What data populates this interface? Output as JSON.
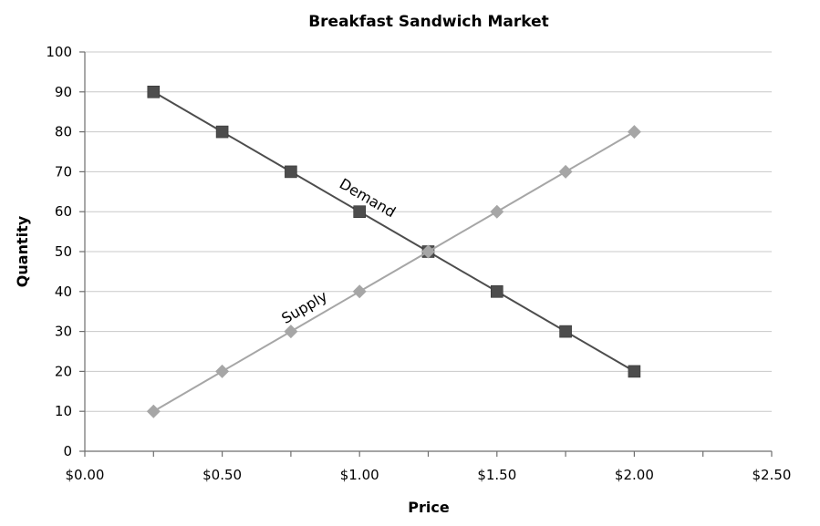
{
  "chart_data": {
    "type": "line",
    "title": "Breakfast Sandwich Market",
    "xlabel": "Price",
    "ylabel": "Quantity",
    "xlim": [
      0,
      2.5
    ],
    "ylim": [
      0,
      100
    ],
    "x_ticks": [
      0,
      0.5,
      1.0,
      1.5,
      2.0,
      2.5
    ],
    "x_tick_labels": [
      "$0.00",
      "$0.50",
      "$1.00",
      "$1.50",
      "$2.00",
      "$2.50"
    ],
    "y_ticks": [
      0,
      10,
      20,
      30,
      40,
      50,
      60,
      70,
      80,
      90,
      100
    ],
    "y_tick_labels": [
      "0",
      "10",
      "20",
      "30",
      "40",
      "50",
      "60",
      "70",
      "80",
      "90",
      "100"
    ],
    "grid": true,
    "legend": "none",
    "series": [
      {
        "name": "Demand",
        "marker": "square",
        "color": "#4d4d4d",
        "x": [
          0.25,
          0.5,
          0.75,
          1.0,
          1.25,
          1.5,
          1.75,
          2.0
        ],
        "y": [
          90,
          80,
          70,
          60,
          50,
          40,
          30,
          20
        ]
      },
      {
        "name": "Supply",
        "marker": "diamond",
        "color": "#a6a6a6",
        "x": [
          0.25,
          0.5,
          0.75,
          1.0,
          1.25,
          1.5,
          1.75,
          2.0
        ],
        "y": [
          10,
          20,
          30,
          40,
          50,
          60,
          70,
          80
        ]
      }
    ],
    "annotations": [
      {
        "text": "Demand",
        "series": "Demand"
      },
      {
        "text": "Supply",
        "series": "Supply"
      }
    ]
  }
}
